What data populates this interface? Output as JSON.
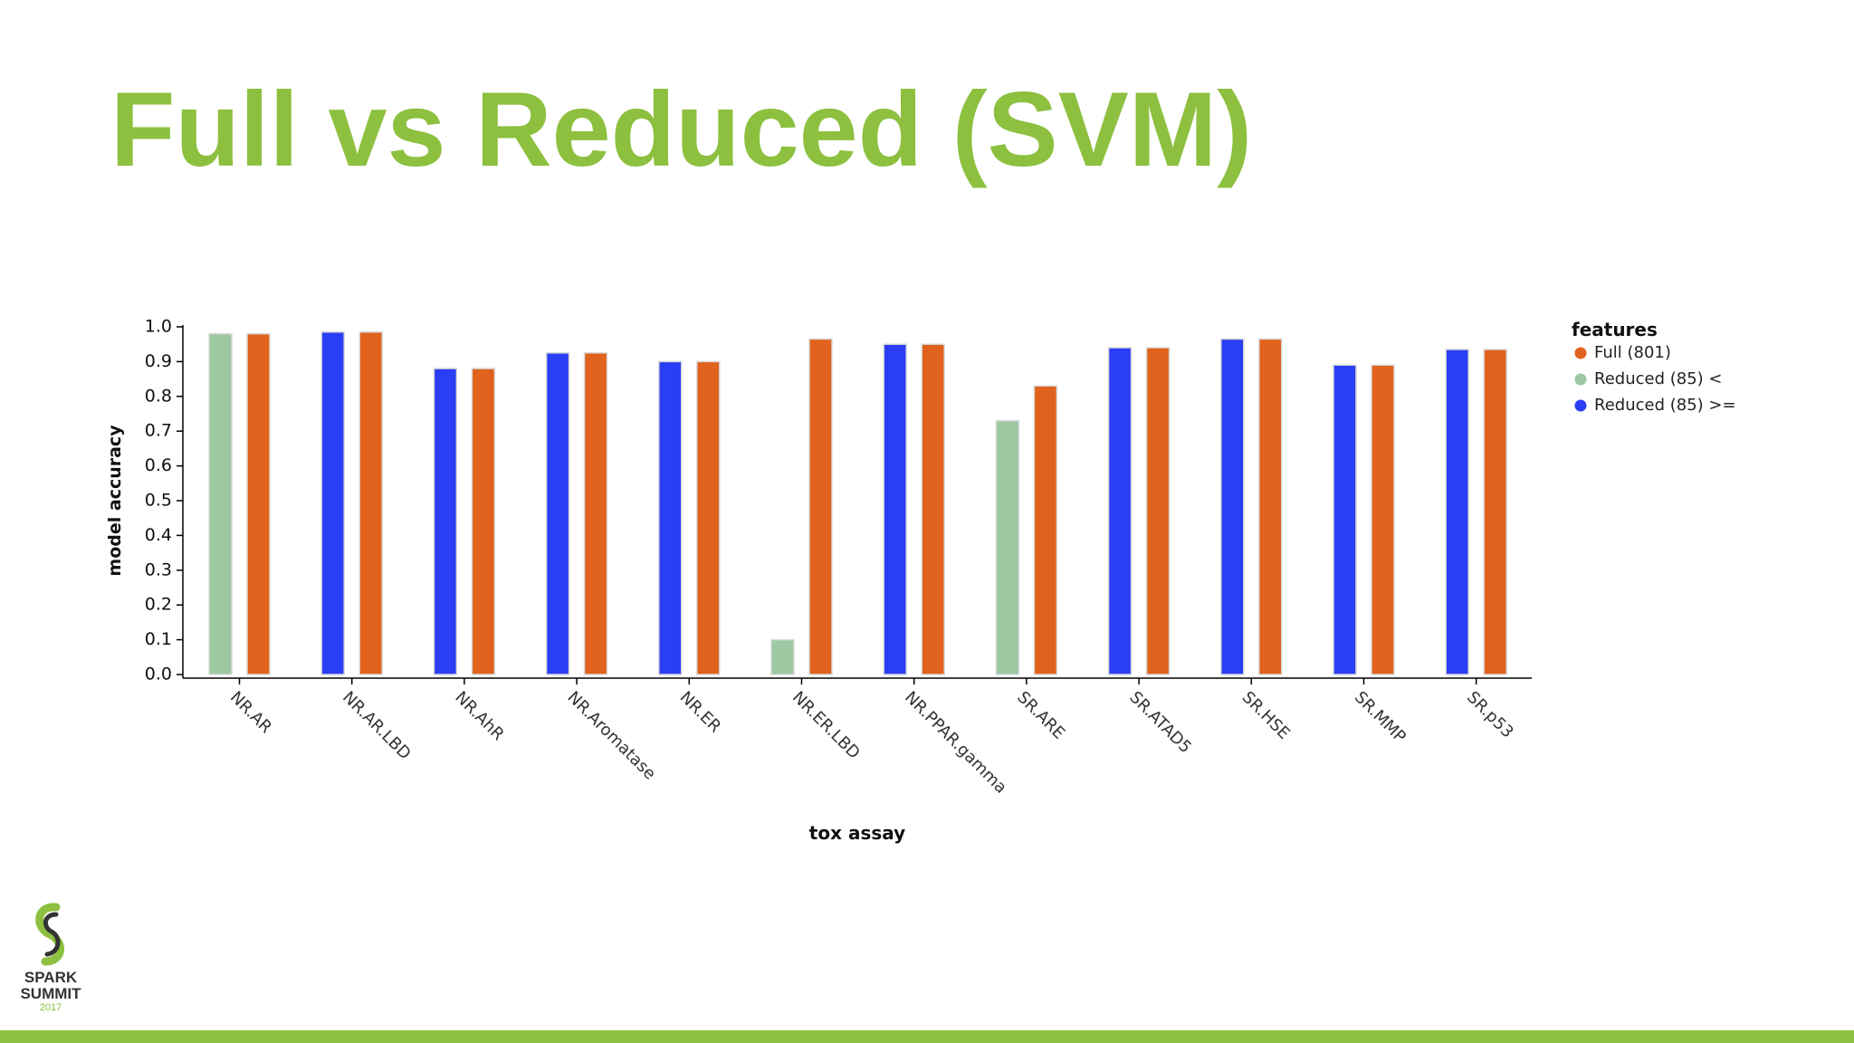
{
  "slide": {
    "title": "Full vs Reduced (SVM)"
  },
  "logo": {
    "line1": "SPARK",
    "line2": "SUMMIT",
    "year": "2017"
  },
  "colors": {
    "brand_green": "#8dc03f",
    "full": "#e0621c",
    "reduced_below": "#9cc8a2",
    "reduced_at_or_above": "#2a3ef5"
  },
  "chart_data": {
    "type": "bar",
    "title": "",
    "xlabel": "tox assay",
    "ylabel": "model accuracy",
    "ylim": [
      0,
      1.0
    ],
    "yticks": [
      "0.0",
      "0.1",
      "0.2",
      "0.3",
      "0.4",
      "0.5",
      "0.6",
      "0.7",
      "0.8",
      "0.9",
      "1.0"
    ],
    "grid": false,
    "legend_title": "features",
    "legend_position": "top-right, outside plot",
    "legend": [
      {
        "label": "Full (801)",
        "color": "#e0621c"
      },
      {
        "label": "Reduced (85) <",
        "color": "#9cc8a2"
      },
      {
        "label": "Reduced (85) >=",
        "color": "#2a3ef5"
      }
    ],
    "categories": [
      "NR.AR",
      "NR.AR.LBD",
      "NR.AhR",
      "NR.Aromatase",
      "NR.ER",
      "NR.ER.LBD",
      "NR.PPAR.gamma",
      "SR.ARE",
      "SR.ATAD5",
      "SR.HSE",
      "SR.MMP",
      "SR.p53"
    ],
    "series": [
      {
        "name": "Reduced (85)",
        "values": [
          0.98,
          0.985,
          0.88,
          0.925,
          0.9,
          0.1,
          0.95,
          0.73,
          0.94,
          0.965,
          0.89,
          0.935
        ],
        "group": [
          "Reduced (85) <",
          "Reduced (85) >=",
          "Reduced (85) >=",
          "Reduced (85) >=",
          "Reduced (85) >=",
          "Reduced (85) <",
          "Reduced (85) >=",
          "Reduced (85) <",
          "Reduced (85) >=",
          "Reduced (85) >=",
          "Reduced (85) >=",
          "Reduced (85) >="
        ]
      },
      {
        "name": "Full (801)",
        "values": [
          0.98,
          0.985,
          0.88,
          0.925,
          0.9,
          0.965,
          0.95,
          0.83,
          0.94,
          0.965,
          0.89,
          0.935
        ]
      }
    ]
  }
}
